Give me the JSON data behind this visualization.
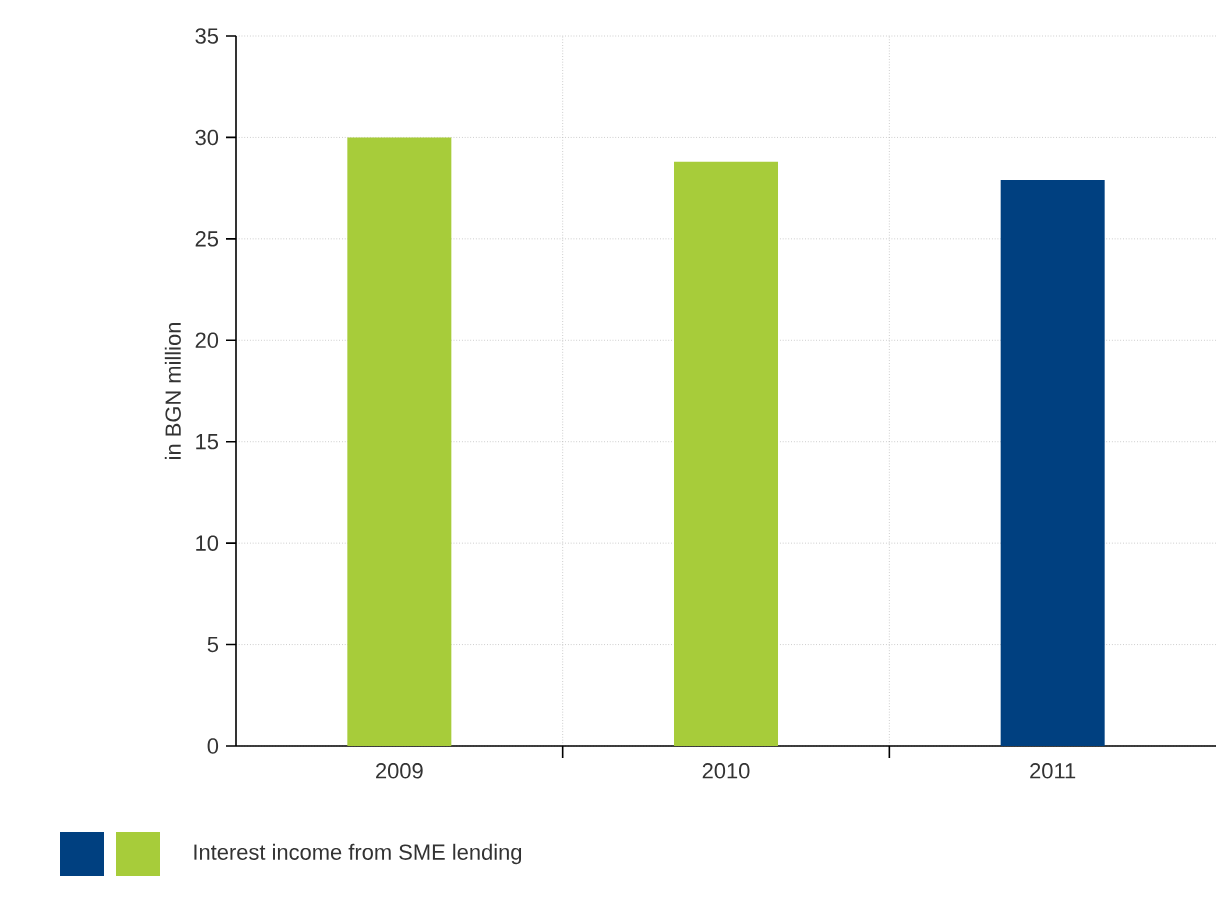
{
  "chart_data": {
    "type": "bar",
    "ylabel": "in BGN million",
    "categories": [
      "2009",
      "2010",
      "2011"
    ],
    "series": [
      {
        "name": "Interest income from SME lending",
        "colors": [
          "#a7cc3a",
          "#a7cc3a",
          "#004080"
        ],
        "values": [
          30,
          28.8,
          27.9
        ]
      }
    ],
    "ylim": [
      0,
      35
    ],
    "yticks": [
      0,
      5,
      10,
      15,
      20,
      25,
      30,
      35
    ],
    "grid": true,
    "legend": "bottom left"
  }
}
